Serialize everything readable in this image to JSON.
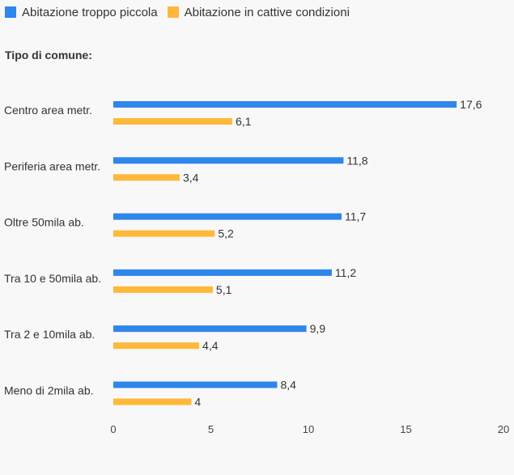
{
  "chart_data": {
    "type": "bar",
    "orientation": "horizontal",
    "title": "",
    "group_title": "Tipo di comune:",
    "categories": [
      "Centro area metr.",
      "Periferia area metr.",
      "Oltre 50mila ab.",
      "Tra 10 e 50mila ab.",
      "Tra 2 e 10mila ab.",
      "Meno di 2mila ab."
    ],
    "series": [
      {
        "name": "Abitazione troppo piccola",
        "color": "#2f86eb",
        "values": [
          17.6,
          11.8,
          11.7,
          11.2,
          9.9,
          8.4
        ],
        "labels": [
          "17,6",
          "11,8",
          "11,7",
          "11,2",
          "9,9",
          "8,4"
        ]
      },
      {
        "name": "Abitazione in cattive condizioni",
        "color": "#ffb83a",
        "values": [
          6.1,
          3.4,
          5.2,
          5.1,
          4.4,
          4
        ],
        "labels": [
          "6,1",
          "3,4",
          "5,2",
          "5,1",
          "4,4",
          "4"
        ]
      }
    ],
    "xlim": [
      0,
      20
    ],
    "xticks": [
      0,
      5,
      10,
      15,
      20
    ],
    "xtick_labels": [
      "0",
      "5",
      "10",
      "15",
      "20"
    ],
    "grid": false,
    "legend_position": "top-left"
  }
}
